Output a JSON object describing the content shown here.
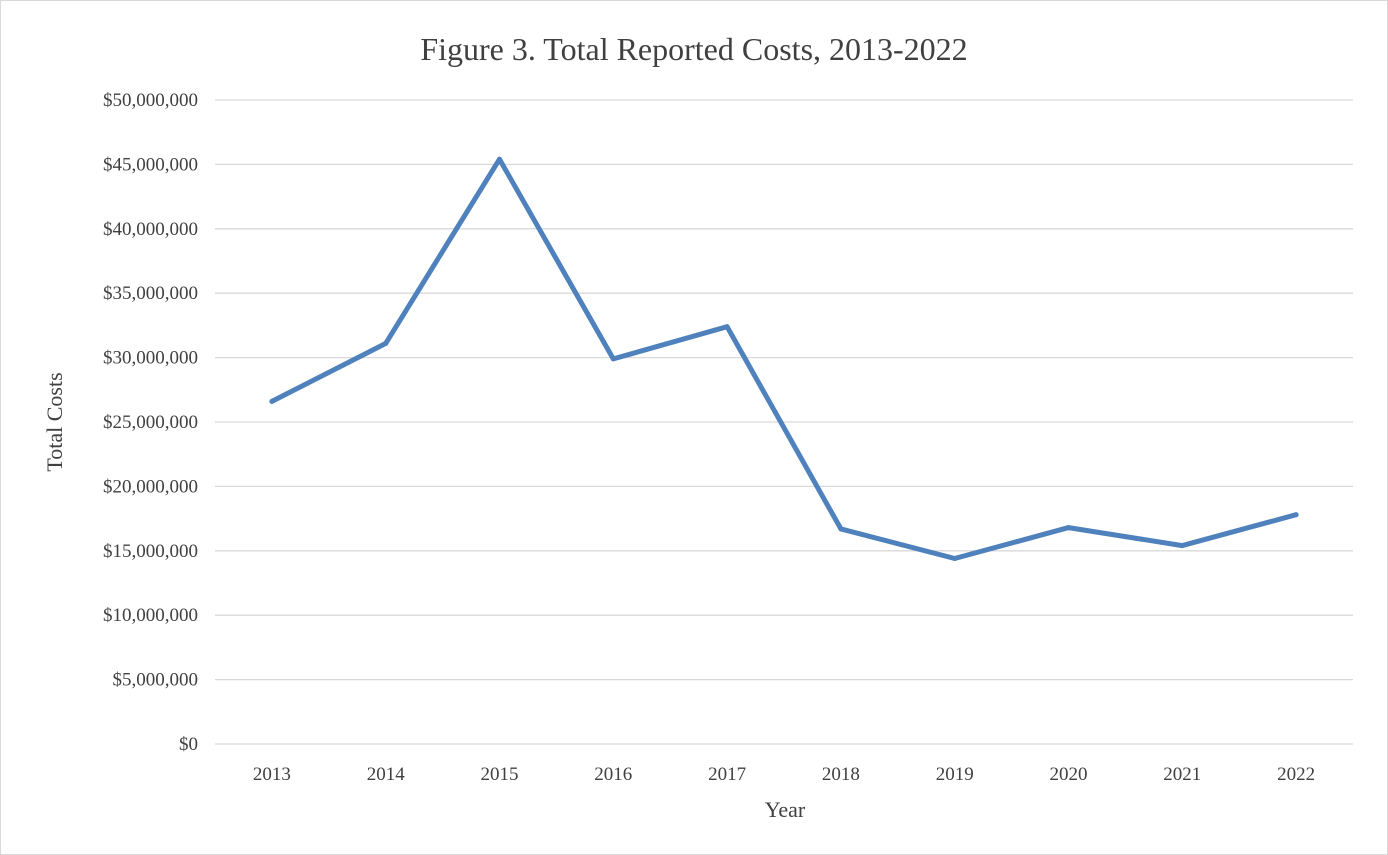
{
  "chart_data": {
    "type": "line",
    "title": "Figure 3. Total Reported Costs, 2013-2022",
    "xlabel": "Year",
    "ylabel": "Total Costs",
    "categories": [
      "2013",
      "2014",
      "2015",
      "2016",
      "2017",
      "2018",
      "2019",
      "2020",
      "2021",
      "2022"
    ],
    "series": [
      {
        "values": [
          26600000,
          31100000,
          45400000,
          29900000,
          32400000,
          16700000,
          14400000,
          16800000,
          15400000,
          17800000
        ],
        "color": "#4f81bd"
      }
    ],
    "ylim": [
      0,
      50000000
    ],
    "yticks": [
      0,
      5000000,
      10000000,
      15000000,
      20000000,
      25000000,
      30000000,
      35000000,
      40000000,
      45000000,
      50000000
    ],
    "ytick_labels": [
      "$0",
      "$5,000,000",
      "$10,000,000",
      "$15,000,000",
      "$20,000,000",
      "$25,000,000",
      "$30,000,000",
      "$35,000,000",
      "$40,000,000",
      "$45,000,000",
      "$50,000,000"
    ],
    "grid": true,
    "legend": "none"
  },
  "colors": {
    "gridline": "#d9d9d9",
    "text": "#404040",
    "border": "#d9d9d9"
  }
}
